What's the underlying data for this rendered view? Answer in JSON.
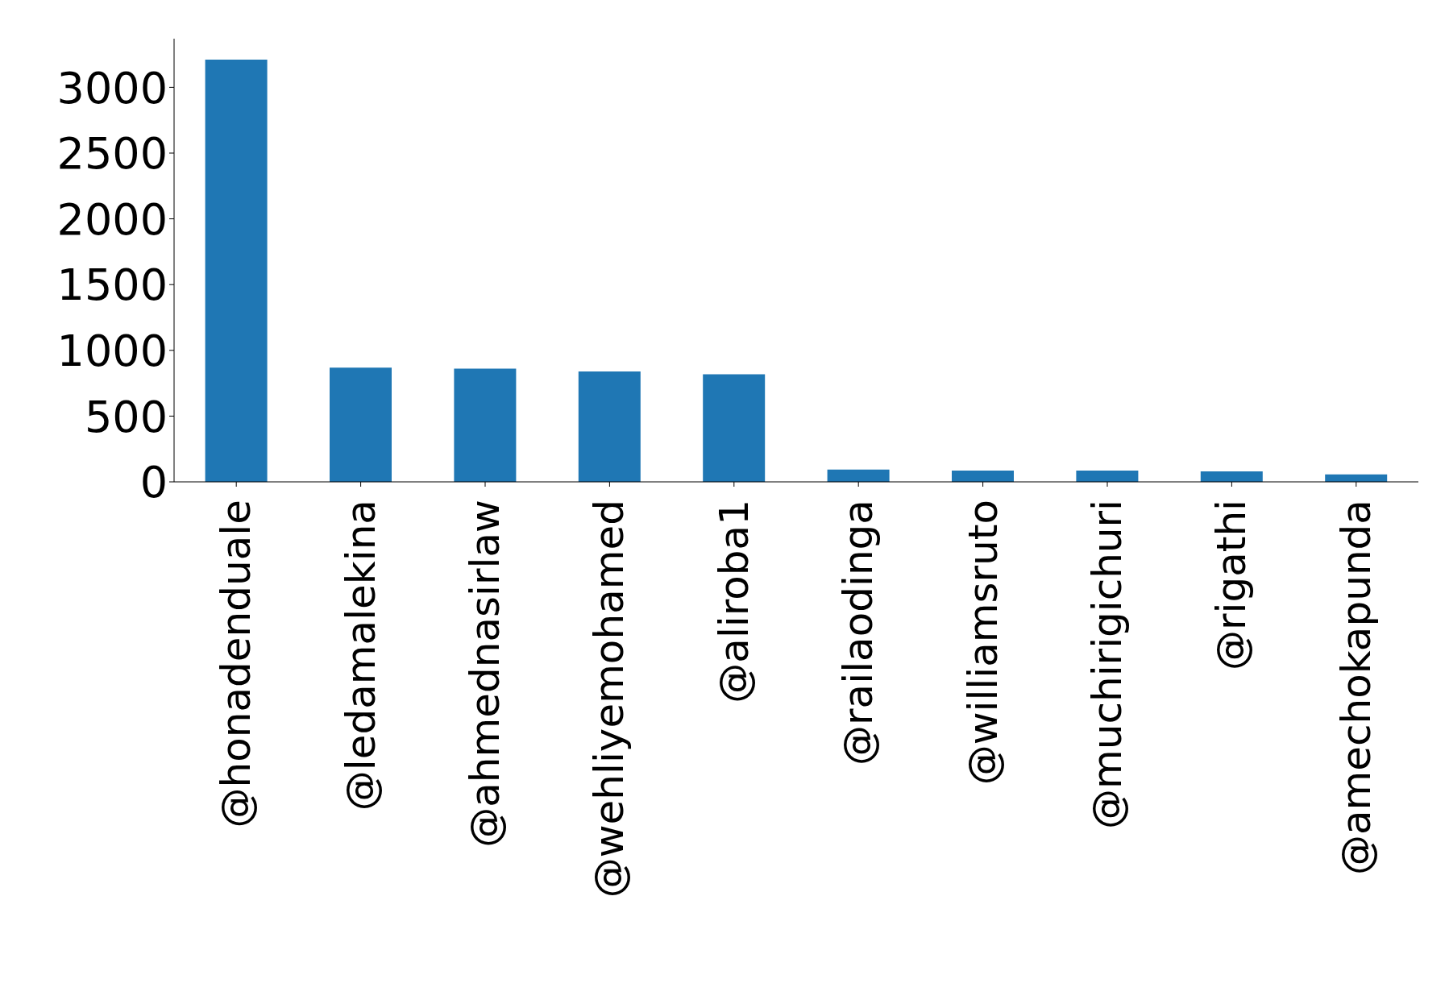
{
  "chart_data": {
    "type": "bar",
    "categories": [
      "@honadenduale",
      "@ledamalekina",
      "@ahmednasirlaw",
      "@wehliyemohamed",
      "@aliroba1",
      "@railaodinga",
      "@williamsruto",
      "@muchirigichuri",
      "@rigathi",
      "@amechokapunda"
    ],
    "values": [
      3210,
      868,
      861,
      840,
      818,
      93,
      86,
      86,
      79,
      57
    ],
    "color": "#1f77b4",
    "ylim": [
      0,
      3370
    ],
    "yticks": [
      0,
      500,
      1000,
      1500,
      2000,
      2500,
      3000
    ]
  }
}
